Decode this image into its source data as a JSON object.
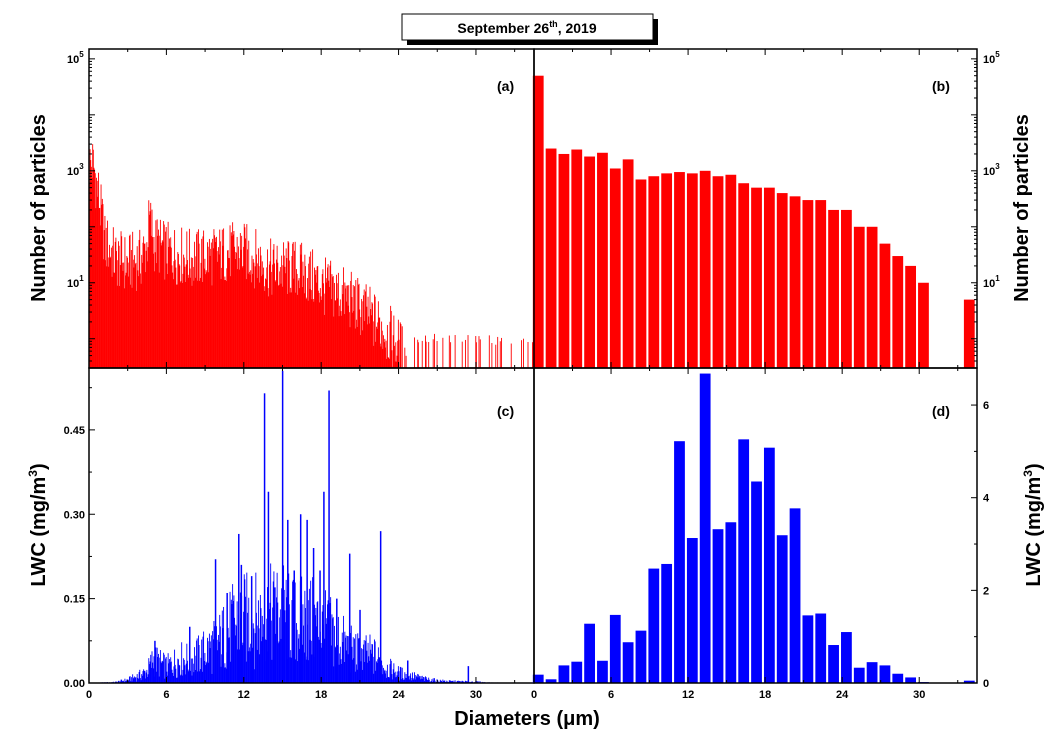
{
  "figure": {
    "title_main": "September 26",
    "title_sup": "th",
    "title_tail": ", 2019",
    "xlabel": "Diameters (μm)",
    "colors": {
      "red": "#ff0000",
      "blue": "#0000ff",
      "axes": "#000000"
    }
  },
  "chart_data": [
    {
      "panel": "(a)",
      "type": "bar",
      "ylabel": "Number of particles",
      "yscale": "log",
      "xlim": [
        0,
        34.5
      ],
      "ylim": [
        0.3,
        150000
      ],
      "xticks": [
        "0",
        "6",
        "12",
        "18",
        "24",
        "30"
      ],
      "yticks": [
        {
          "base": "10",
          "exp": "5",
          "value": 100000
        },
        {
          "base": "10",
          "exp": "3",
          "value": 1000
        },
        {
          "base": "10",
          "exp": "1",
          "value": 10
        }
      ],
      "color": "#ff0000",
      "bin_width": 0.05,
      "envelope": [
        [
          0.3,
          1500
        ],
        [
          0.6,
          600
        ],
        [
          0.9,
          200
        ],
        [
          1.2,
          60
        ],
        [
          2,
          30
        ],
        [
          3,
          25
        ],
        [
          4,
          30
        ],
        [
          4.5,
          50
        ],
        [
          4.7,
          150
        ],
        [
          5,
          60
        ],
        [
          6,
          40
        ],
        [
          8,
          30
        ],
        [
          10,
          35
        ],
        [
          11,
          40
        ],
        [
          12,
          40
        ],
        [
          13,
          30
        ],
        [
          14,
          20
        ],
        [
          16,
          20
        ],
        [
          18,
          10
        ],
        [
          19,
          8
        ],
        [
          20,
          6
        ],
        [
          21,
          4
        ],
        [
          22,
          2.5
        ],
        [
          23,
          1.5
        ],
        [
          24,
          0.8
        ],
        [
          24.5,
          0.5
        ],
        [
          25,
          0.4
        ],
        [
          34.5,
          0.35
        ]
      ]
    },
    {
      "panel": "(b)",
      "type": "bar",
      "ylabel": "Number of particles",
      "yscale": "log",
      "xlim": [
        0,
        34.5
      ],
      "ylim": [
        0.3,
        150000
      ],
      "xticks": [
        "0",
        "6",
        "12",
        "18",
        "24",
        "30"
      ],
      "yticks": [
        {
          "base": "10",
          "exp": "5",
          "value": 100000
        },
        {
          "base": "10",
          "exp": "3",
          "value": 1000
        },
        {
          "base": "10",
          "exp": "1",
          "value": 10
        }
      ],
      "color": "#ff0000",
      "bin_width": 1,
      "x": [
        0.33,
        1.33,
        2.33,
        3.33,
        4.33,
        5.33,
        6.33,
        7.33,
        8.33,
        9.33,
        10.33,
        11.33,
        12.33,
        13.33,
        14.33,
        15.33,
        16.33,
        17.33,
        18.33,
        19.33,
        20.33,
        21.33,
        22.33,
        23.33,
        24.33,
        25.33,
        26.33,
        27.33,
        28.33,
        29.33,
        30.33,
        33.9
      ],
      "values": [
        50000,
        2500,
        2000,
        2400,
        1800,
        2100,
        1100,
        1600,
        700,
        800,
        900,
        950,
        900,
        1000,
        800,
        850,
        600,
        500,
        500,
        400,
        350,
        300,
        300,
        200,
        200,
        100,
        100,
        50,
        30,
        20,
        10,
        5
      ]
    },
    {
      "panel": "(c)",
      "type": "bar",
      "ylabel": "LWC (mg/m3)",
      "yscale": "linear",
      "xlim": [
        0,
        34.5
      ],
      "ylim": [
        0,
        0.56
      ],
      "xticks": [
        "0",
        "6",
        "12",
        "18",
        "24",
        "30"
      ],
      "yticks": [
        "0.00",
        "0.15",
        "0.30",
        "0.45"
      ],
      "color": "#0000ff",
      "bin_width": 0.05,
      "envelope": [
        [
          0,
          0
        ],
        [
          2,
          0.002
        ],
        [
          3,
          0.008
        ],
        [
          4,
          0.02
        ],
        [
          4.5,
          0.03
        ],
        [
          5,
          0.06
        ],
        [
          6,
          0.04
        ],
        [
          7,
          0.06
        ],
        [
          8,
          0.06
        ],
        [
          9,
          0.08
        ],
        [
          10,
          0.1
        ],
        [
          11,
          0.14
        ],
        [
          12,
          0.16
        ],
        [
          13,
          0.16
        ],
        [
          14,
          0.17
        ],
        [
          15,
          0.18
        ],
        [
          16,
          0.15
        ],
        [
          17,
          0.16
        ],
        [
          18,
          0.14
        ],
        [
          19,
          0.12
        ],
        [
          20,
          0.09
        ],
        [
          21,
          0.07
        ],
        [
          22,
          0.07
        ],
        [
          23,
          0.04
        ],
        [
          24,
          0.025
        ],
        [
          25,
          0.018
        ],
        [
          26,
          0.01
        ],
        [
          27,
          0.006
        ],
        [
          28,
          0.004
        ],
        [
          30,
          0.003
        ],
        [
          31,
          0.001
        ],
        [
          34.5,
          0
        ]
      ],
      "spikes": [
        [
          5.1,
          0.075
        ],
        [
          7.8,
          0.1
        ],
        [
          9.8,
          0.22
        ],
        [
          10.7,
          0.16
        ],
        [
          11.6,
          0.265
        ],
        [
          11.8,
          0.21
        ],
        [
          12.6,
          0.19
        ],
        [
          13.6,
          0.515
        ],
        [
          13.9,
          0.34
        ],
        [
          14.4,
          0.17
        ],
        [
          15.0,
          0.555
        ],
        [
          15.4,
          0.29
        ],
        [
          15.9,
          0.2
        ],
        [
          16.4,
          0.3
        ],
        [
          16.9,
          0.29
        ],
        [
          17.4,
          0.24
        ],
        [
          17.9,
          0.2
        ],
        [
          18.2,
          0.34
        ],
        [
          18.6,
          0.52
        ],
        [
          19.2,
          0.15
        ],
        [
          20.2,
          0.23
        ],
        [
          21.0,
          0.13
        ],
        [
          22.6,
          0.27
        ],
        [
          24.7,
          0.04
        ],
        [
          29.4,
          0.03
        ]
      ]
    },
    {
      "panel": "(d)",
      "type": "bar",
      "ylabel": "LWC (mg/m3)",
      "yscale": "linear",
      "xlim": [
        0,
        34.5
      ],
      "ylim": [
        0,
        6.8
      ],
      "xticks": [
        "0",
        "6",
        "12",
        "18",
        "24",
        "30"
      ],
      "yticks": [
        "0",
        "2",
        "4",
        "6"
      ],
      "color": "#0000ff",
      "bin_width": 1,
      "x": [
        0.33,
        1.33,
        2.33,
        3.33,
        4.33,
        5.33,
        6.33,
        7.33,
        8.33,
        9.33,
        10.33,
        11.33,
        12.33,
        13.33,
        14.33,
        15.33,
        16.33,
        17.33,
        18.33,
        19.33,
        20.33,
        21.33,
        22.33,
        23.33,
        24.33,
        25.33,
        26.33,
        27.33,
        28.33,
        29.33,
        30.33,
        33.9
      ],
      "values": [
        0.18,
        0.08,
        0.38,
        0.46,
        1.28,
        0.48,
        1.47,
        0.88,
        1.13,
        2.47,
        2.57,
        5.22,
        3.13,
        6.68,
        3.32,
        3.47,
        5.26,
        4.35,
        5.08,
        3.19,
        3.77,
        1.46,
        1.5,
        0.82,
        1.1,
        0.33,
        0.45,
        0.38,
        0.2,
        0.12,
        0.02,
        0.05
      ]
    }
  ]
}
